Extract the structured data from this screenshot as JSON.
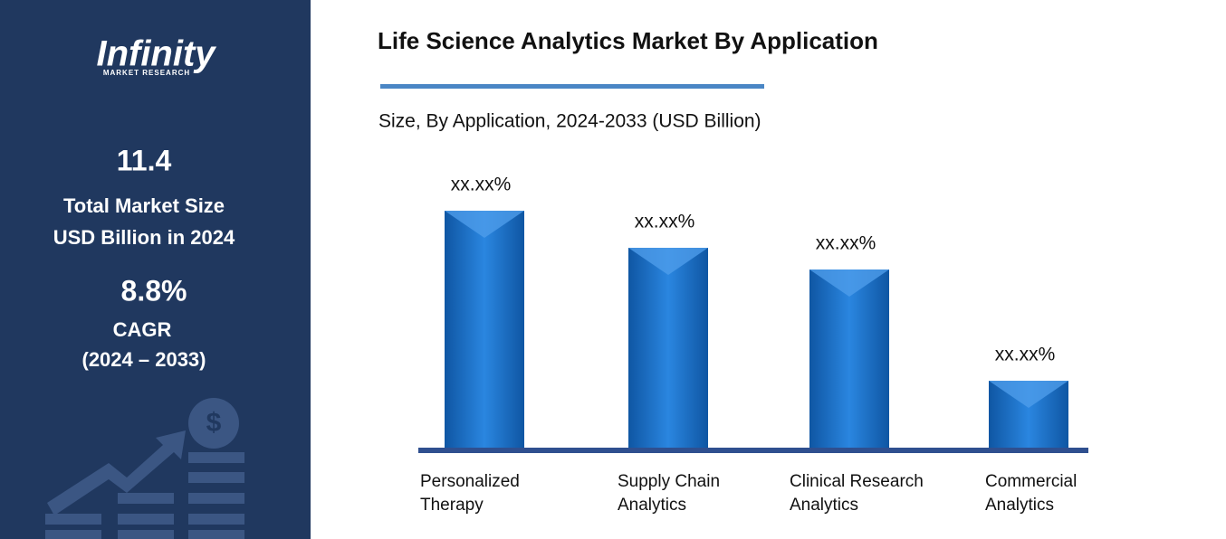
{
  "sidebar": {
    "logo": "Infinity",
    "logo_sub": "MARKET RESEARCH",
    "market_size": "11.4",
    "market_size_label_1": "Total Market Size",
    "market_size_label_2": "USD Billion in 2024",
    "cagr": "8.8%",
    "cagr_label": "CAGR",
    "cagr_period": "(2024 – 2033)"
  },
  "chart_data": {
    "type": "bar",
    "title": "Life Science Analytics Market By Application",
    "subtitle": "Size, By Application, 2024-2033 (USD Billion)",
    "categories": [
      "Personalized Therapy",
      "Supply Chain Analytics",
      "Clinical Research Analytics",
      "Commercial Analytics"
    ],
    "values": [
      26.4,
      22.3,
      19.9,
      7.6
    ],
    "value_labels": [
      "xx.xx%",
      "xx.xx%",
      "xx.xx%",
      "xx.xx%"
    ],
    "color": "#1a6fc4"
  }
}
